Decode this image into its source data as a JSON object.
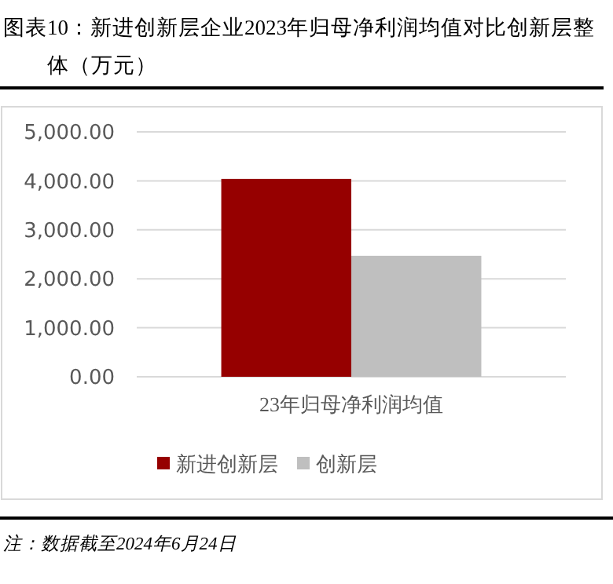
{
  "chart_data": {
    "type": "bar",
    "title": "图表10：新进创新层企业2023年归母净利润均值对比创新层整体（万元）",
    "categories": [
      "23年归母净利润均值"
    ],
    "series": [
      {
        "name": "新进创新层",
        "color": "#960000",
        "values": [
          4040
        ]
      },
      {
        "name": "创新层",
        "color": "#bfbfbf",
        "values": [
          2470
        ]
      }
    ],
    "ylim": [
      0,
      5000
    ],
    "yticks": [
      {
        "value": 0,
        "label": "0.00"
      },
      {
        "value": 1000,
        "label": "1,000.00"
      },
      {
        "value": 2000,
        "label": "2,000.00"
      },
      {
        "value": 3000,
        "label": "3,000.00"
      },
      {
        "value": 4000,
        "label": "4,000.00"
      },
      {
        "value": 5000,
        "label": "5,000.00"
      }
    ],
    "grid": "y",
    "legend": "bottom",
    "annotations": [
      "注：数据截至2024年6月24日"
    ]
  }
}
